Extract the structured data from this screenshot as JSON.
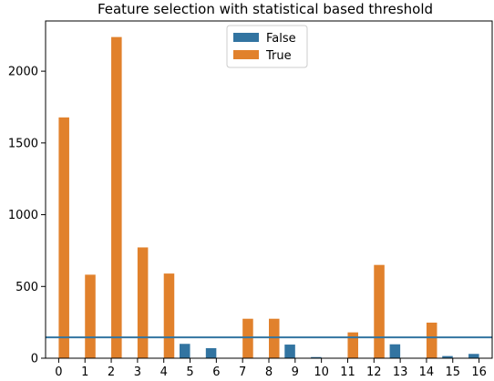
{
  "chart_data": {
    "type": "bar",
    "title": "Feature selection with statistical based threshold",
    "xlabel": "",
    "ylabel": "",
    "categories": [
      "0",
      "1",
      "2",
      "3",
      "4",
      "5",
      "6",
      "7",
      "8",
      "9",
      "10",
      "11",
      "12",
      "13",
      "14",
      "15",
      "16"
    ],
    "series": [
      {
        "name": "False",
        "color": "#3274a1",
        "values": [
          0,
          0,
          0,
          0,
          0,
          100,
          70,
          0,
          0,
          95,
          8,
          0,
          0,
          97,
          0,
          15,
          30
        ]
      },
      {
        "name": "True",
        "color": "#e1812c",
        "values": [
          1678,
          582,
          2238,
          772,
          590,
          0,
          0,
          275,
          275,
          0,
          0,
          180,
          650,
          0,
          248,
          0,
          0
        ]
      }
    ],
    "threshold": {
      "value": 145,
      "color": "#3274a1"
    },
    "ylim": [
      0,
      2350
    ],
    "yticks": [
      0,
      500,
      1000,
      1500,
      2000
    ],
    "grid": false,
    "legend_position": "top-center"
  }
}
